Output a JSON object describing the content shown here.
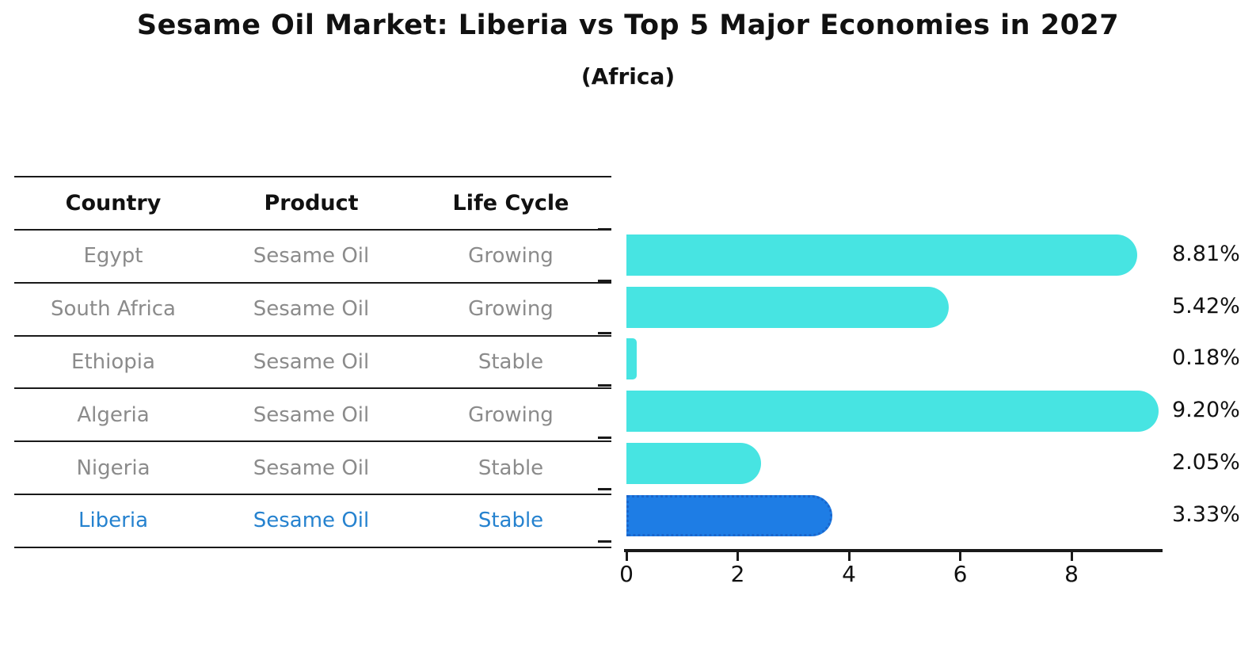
{
  "title": "Sesame Oil Market: Liberia vs Top 5 Major Economies in 2027",
  "subtitle": "(Africa)",
  "table": {
    "headers": [
      "Country",
      "Product",
      "Life Cycle"
    ],
    "rows": [
      {
        "country": "Egypt",
        "product": "Sesame Oil",
        "life_cycle": "Growing",
        "highlight": false
      },
      {
        "country": "South Africa",
        "product": "Sesame Oil",
        "life_cycle": "Growing",
        "highlight": false
      },
      {
        "country": "Ethiopia",
        "product": "Sesame Oil",
        "life_cycle": "Stable",
        "highlight": false
      },
      {
        "country": "Algeria",
        "product": "Sesame Oil",
        "life_cycle": "Growing",
        "highlight": false
      },
      {
        "country": "Nigeria",
        "product": "Sesame Oil",
        "life_cycle": "Stable",
        "highlight": false
      },
      {
        "country": "Liberia",
        "product": "Sesame Oil",
        "life_cycle": "Stable",
        "highlight": true
      }
    ]
  },
  "chart_data": {
    "type": "bar",
    "orientation": "horizontal",
    "title": "Sesame Oil Market: Liberia vs Top 5 Major Economies in 2027",
    "subtitle": "(Africa)",
    "categories": [
      "Egypt",
      "South Africa",
      "Ethiopia",
      "Algeria",
      "Nigeria",
      "Liberia"
    ],
    "values": [
      8.81,
      5.42,
      0.18,
      9.2,
      2.05,
      3.33
    ],
    "value_labels": [
      "8.81%",
      "5.42%",
      "0.18%",
      "9.20%",
      "2.05%",
      "3.33%"
    ],
    "x_ticks": [
      0,
      2,
      4,
      6,
      8
    ],
    "xlim": [
      0,
      9.6
    ],
    "grid": false,
    "legend": false,
    "bar_color": "#47e4e2",
    "highlight_color": "#1e7de5",
    "highlight_index": 5,
    "highlight_border": "dotted"
  },
  "colors": {
    "bar_cyan": "#47e4e2",
    "bar_blue": "#1e7de5",
    "highlight_text": "#2582cf",
    "table_text": "#8b8b8b",
    "axis_line": "#1a1a1a"
  }
}
